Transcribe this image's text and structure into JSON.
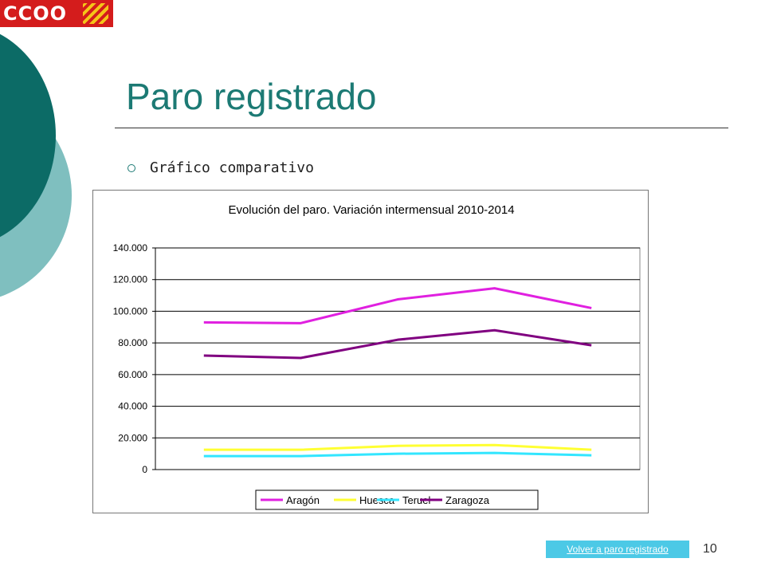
{
  "logo": {
    "text": "CCOO"
  },
  "title": "Paro registrado",
  "bullet": "Gráfico comparativo",
  "footer": {
    "link_label": "Volver a paro registrado",
    "page_number": "10"
  },
  "colors": {
    "title": "#1c7a74",
    "aragon": "#e020e0",
    "huesca": "#ffff33",
    "teruel": "#33e6ff",
    "zaragoza": "#800080",
    "link_bg": "#4cc9e6"
  },
  "chart_data": {
    "type": "line",
    "title": "Evolución del paro. Variación intermensual 2010-2014",
    "xlabel": "",
    "ylabel": "",
    "ylim": [
      0,
      140000
    ],
    "yticks": [
      "0",
      "20.000",
      "40.000",
      "60.000",
      "80.000",
      "100.000",
      "120.000",
      "140.000"
    ],
    "x": [
      1,
      2,
      3,
      4,
      5
    ],
    "grid": true,
    "legend_position": "bottom",
    "series": [
      {
        "name": "Aragón",
        "color": "#e020e0",
        "values": [
          93000,
          92500,
          107500,
          114500,
          102000
        ]
      },
      {
        "name": "Huesca",
        "color": "#ffff33",
        "values": [
          12500,
          12500,
          15000,
          15500,
          12500
        ]
      },
      {
        "name": "Teruel",
        "color": "#33e6ff",
        "values": [
          8500,
          8500,
          10000,
          10500,
          9000
        ]
      },
      {
        "name": "Zaragoza",
        "color": "#800080",
        "values": [
          72000,
          70500,
          82000,
          88000,
          78500
        ]
      }
    ]
  }
}
